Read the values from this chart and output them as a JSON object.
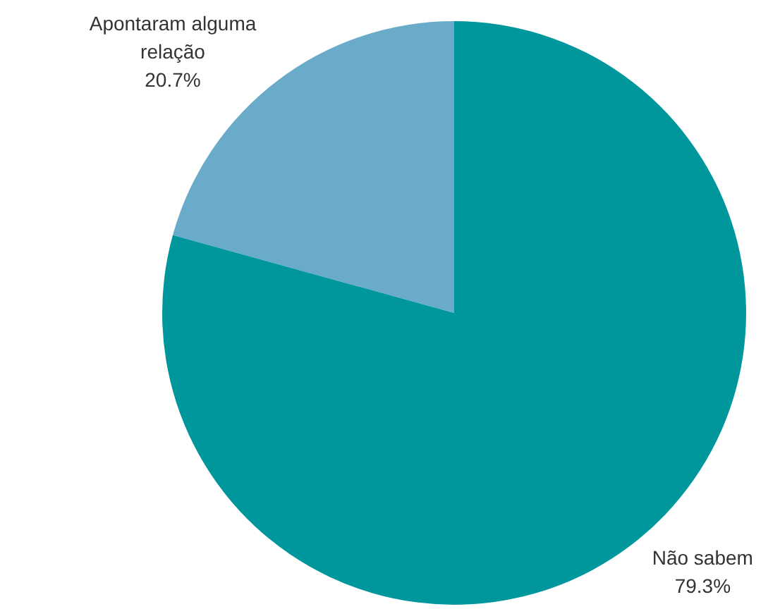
{
  "chart_data": {
    "type": "pie",
    "categories": [
      "Apontaram alguma relação",
      "Não sabem"
    ],
    "values": [
      20.7,
      79.3
    ],
    "value_labels": [
      "20.7%",
      "79.3%"
    ],
    "colors": [
      "#6aabc9",
      "#00979c"
    ]
  }
}
